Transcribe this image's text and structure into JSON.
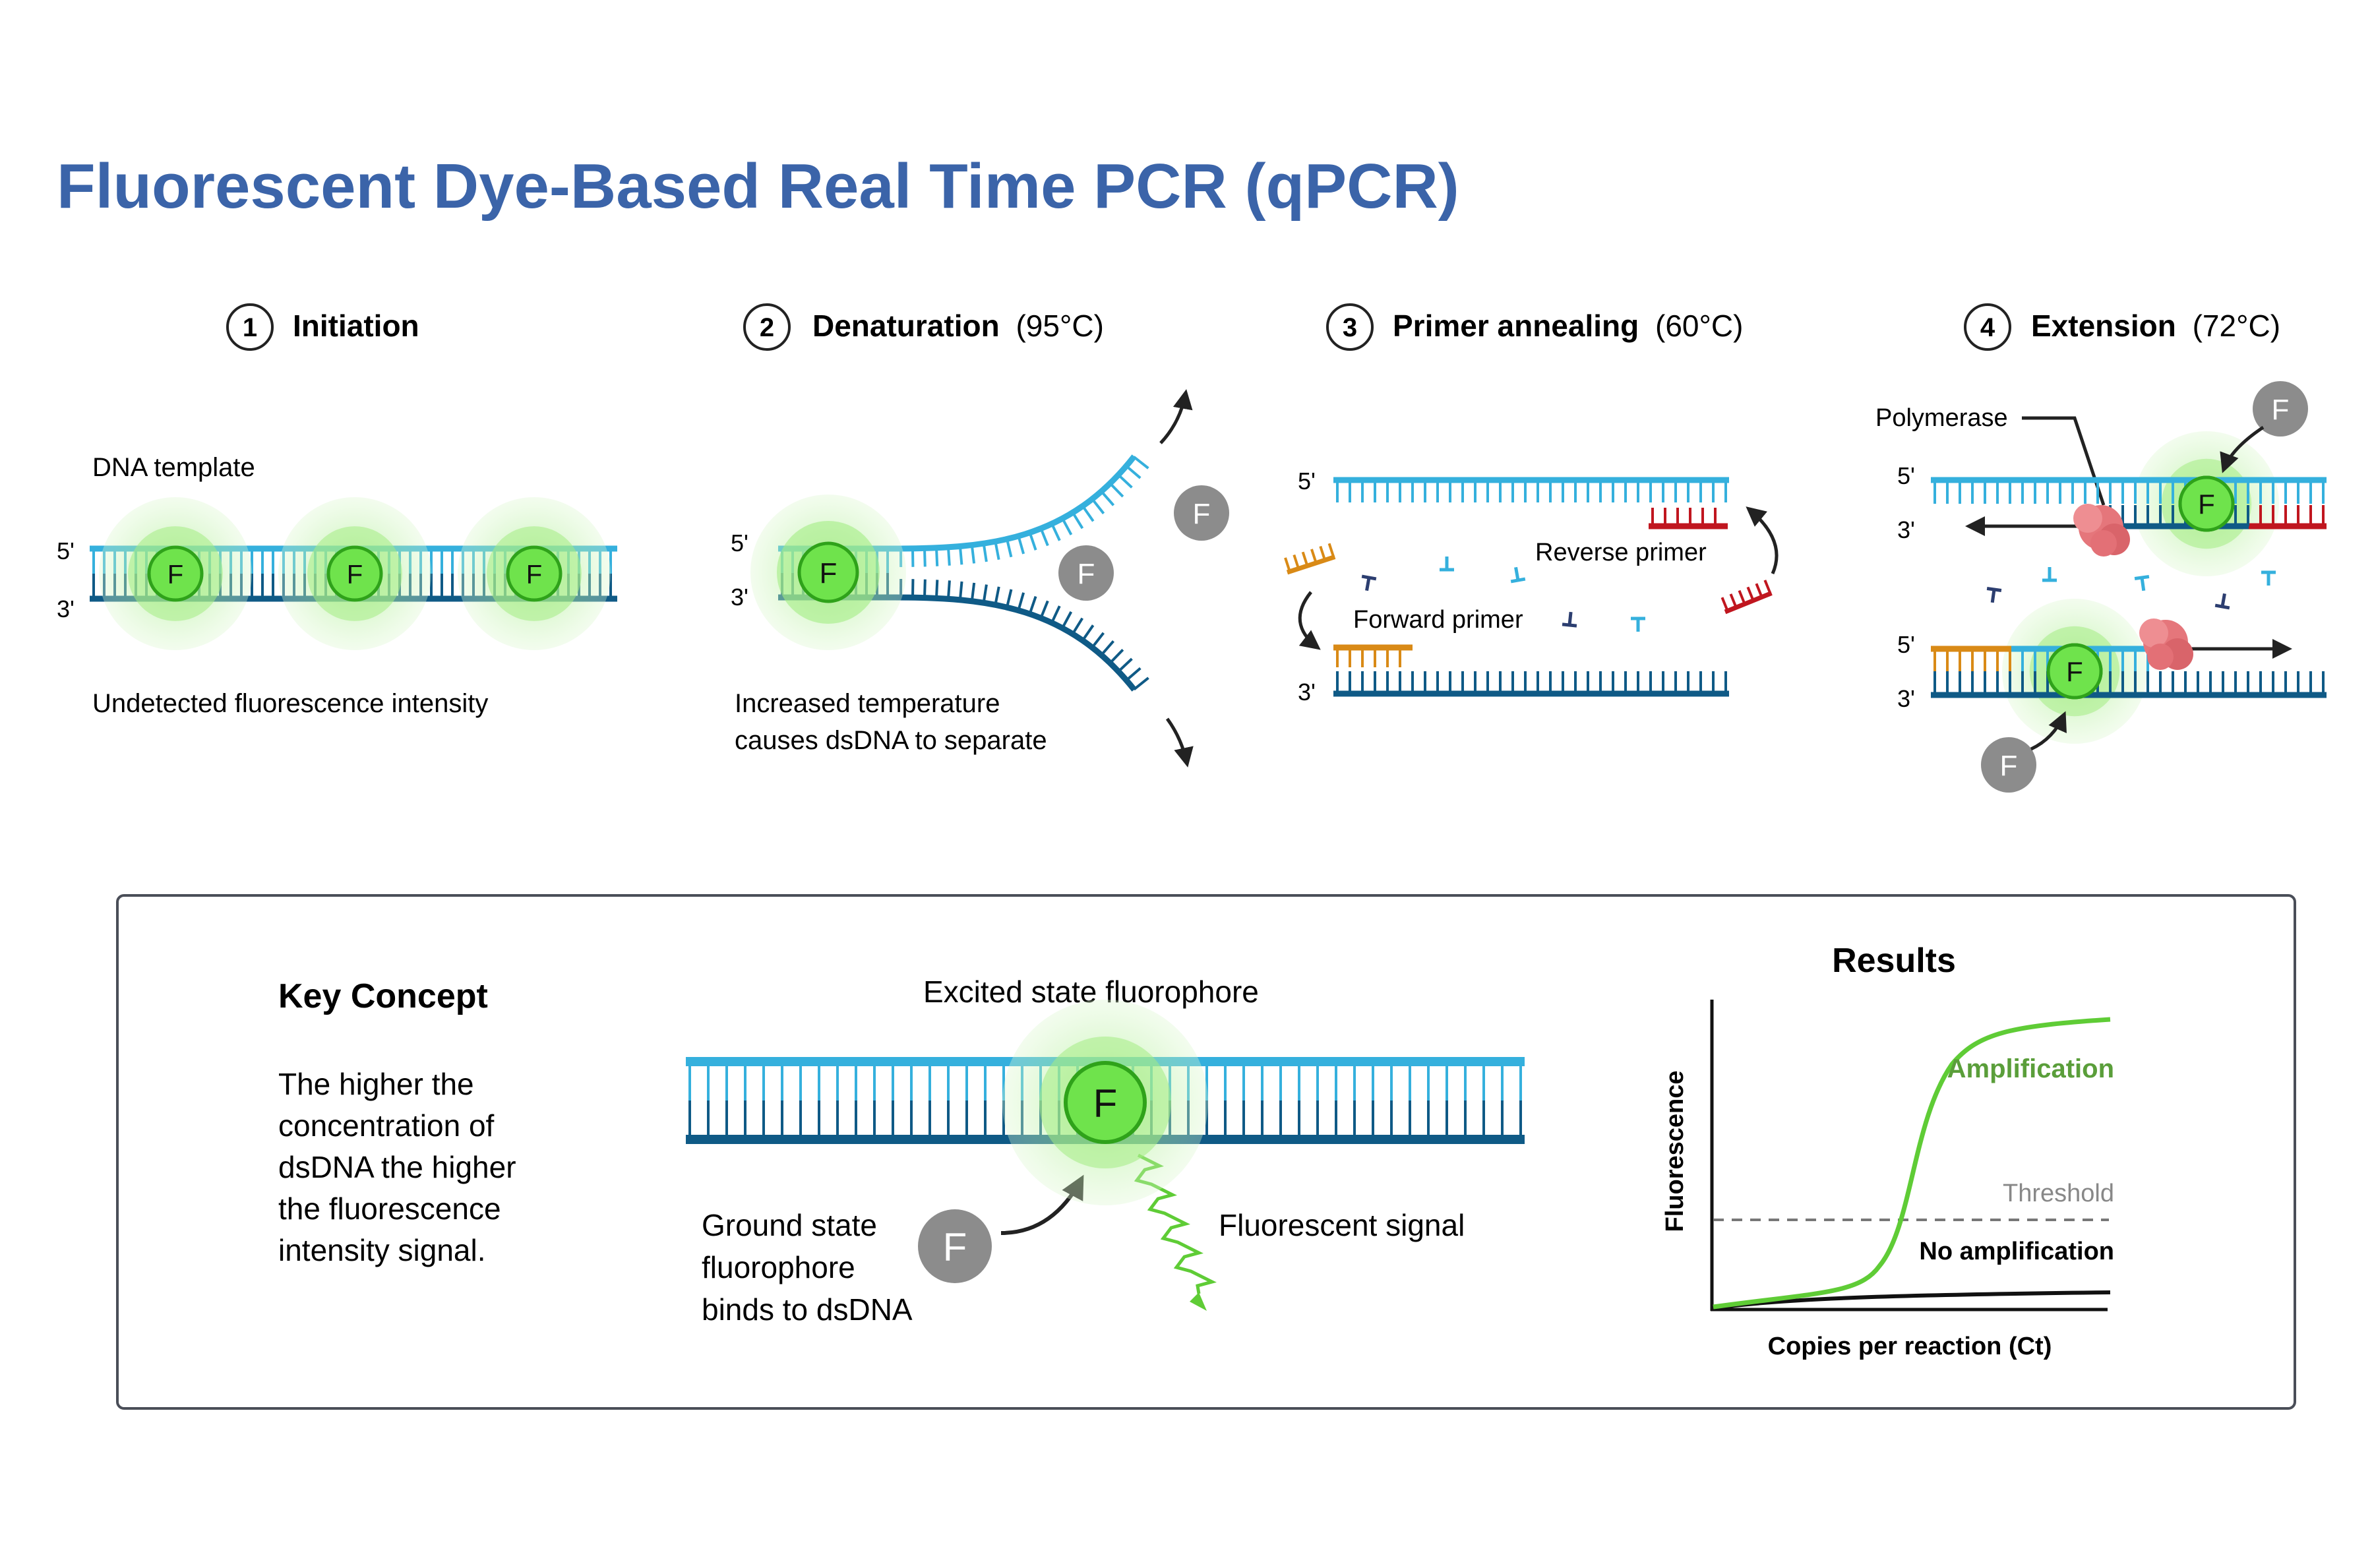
{
  "title": "Fluorescent Dye-Based Real Time PCR (qPCR)",
  "colors": {
    "title": "#3b64a9",
    "strand_top": "#35b0dd",
    "strand_bottom": "#0f5a86",
    "fluor_on": "#6fe34c",
    "fluor_off": "#8c8c8c",
    "forward_primer": "#d98a16",
    "reverse_primer": "#c0161f",
    "polymerase": "#e5767b",
    "curve": "#5fcc36"
  },
  "steps": [
    {
      "num": "1",
      "label": "Initiation",
      "temp": ""
    },
    {
      "num": "2",
      "label": "Denaturation",
      "temp": "(95°C)"
    },
    {
      "num": "3",
      "label": "Primer annealing",
      "temp": "(60°C)"
    },
    {
      "num": "4",
      "label": "Extension",
      "temp": "(72°C)"
    }
  ],
  "ends": {
    "five": "5'",
    "three": "3'"
  },
  "fluor_letter": "F",
  "step1": {
    "template_label": "DNA template",
    "caption": "Undetected fluorescence intensity"
  },
  "step2": {
    "caption_line1": "Increased temperature",
    "caption_line2": "causes dsDNA to separate"
  },
  "step3": {
    "reverse_primer": "Reverse primer",
    "forward_primer": "Forward primer"
  },
  "step4": {
    "polymerase": "Polymerase"
  },
  "key": {
    "heading": "Key Concept",
    "lines": [
      "The higher the",
      "concentration of",
      "dsDNA the higher",
      "the fluorescence",
      "intensity signal."
    ],
    "excited": "Excited state fluorophore",
    "ground_lines": [
      "Ground state",
      "fluorophore",
      "binds to dsDNA"
    ],
    "signal": "Fluorescent signal"
  },
  "results": {
    "heading": "Results",
    "ylabel": "Fluorescence",
    "xlabel": "Copies per reaction (Ct)",
    "threshold": "Threshold",
    "amplification": "Amplification",
    "no_amplification": "No amplification"
  }
}
